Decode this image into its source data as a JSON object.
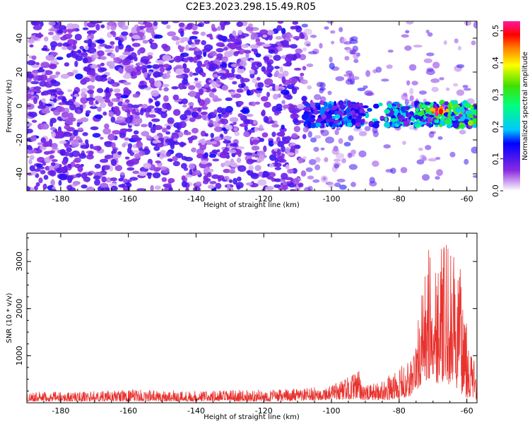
{
  "title": "C2E3.2023.298.15.49.R05",
  "colors": {
    "snr_line": "#e8322e",
    "spectrogram_palette": [
      "#ffffff",
      "#d9b8f2",
      "#8a2be2",
      "#5a00e0",
      "#0000ff",
      "#00c8ff",
      "#00ff80",
      "#40e000",
      "#ffff00",
      "#ff8000",
      "#ff0000",
      "#ff1aa0"
    ]
  },
  "chart_data": [
    {
      "type": "heatmap",
      "title": "",
      "xlabel": "Height of straight line (km)",
      "ylabel": "Frequency (Hz)",
      "xlim": [
        -190,
        -57
      ],
      "ylim": [
        -50,
        50
      ],
      "x_ticks": [
        "-180",
        "-160",
        "-140",
        "-120",
        "-100",
        "-80",
        "-60"
      ],
      "y_ticks": [
        "-40",
        "-20",
        "0",
        "20",
        "40"
      ],
      "colorbar": {
        "label": "Normalized spectral amplitude",
        "range": [
          0.0,
          0.53
        ],
        "ticks": [
          "0.0",
          "0.1",
          "0.2",
          "0.3",
          "0.4",
          "0.5"
        ]
      },
      "features": {
        "background_noise_region_km": [
          -190,
          -108
        ],
        "sparse_region_km": [
          -108,
          -57
        ],
        "signal_band_center_hz": -5,
        "signal_band_halfwidth_hz": 7,
        "signal_onset_km": -108,
        "peak_amplitude_location": {
          "x_km": -68,
          "y_hz": -3,
          "value": 0.53
        }
      }
    },
    {
      "type": "line",
      "title": "",
      "xlabel": "Height of straight line (km)",
      "ylabel": "SNR (10 * v/v)",
      "xlim": [
        -190,
        -57
      ],
      "ylim": [
        0,
        3600
      ],
      "x_ticks": [
        "-180",
        "-160",
        "-140",
        "-120",
        "-100",
        "-80",
        "-60"
      ],
      "y_ticks": [
        "1000",
        "2000",
        "3000"
      ],
      "series": [
        {
          "x": [
            -190,
            -180,
            -170,
            -160,
            -150,
            -140,
            -130,
            -120,
            -110,
            -105,
            -100,
            -95,
            -92,
            -90,
            -85,
            -80,
            -77,
            -75,
            -73,
            -71,
            -69,
            -67,
            -65,
            -63,
            -61,
            -59,
            -57
          ],
          "envelope_max": [
            240,
            230,
            250,
            280,
            270,
            260,
            270,
            280,
            300,
            330,
            380,
            560,
            700,
            360,
            480,
            740,
            920,
            1400,
            2600,
            3350,
            3550,
            3300,
            3450,
            2900,
            2800,
            1300,
            700
          ],
          "envelope_min": [
            30,
            30,
            30,
            30,
            30,
            30,
            30,
            30,
            40,
            50,
            60,
            70,
            80,
            50,
            60,
            80,
            120,
            250,
            400,
            500,
            400,
            450,
            350,
            300,
            150,
            80,
            60
          ]
        }
      ]
    }
  ]
}
